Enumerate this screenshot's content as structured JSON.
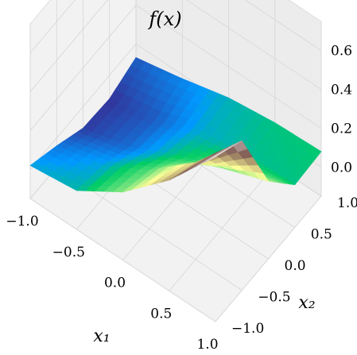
{
  "chart_data": {
    "type": "surface3d",
    "title": "f(x)",
    "xlabel": "x₁",
    "ylabel": "x₂",
    "zlabel": "",
    "xlim": [
      -1.0,
      1.0
    ],
    "ylim": [
      -1.0,
      1.0
    ],
    "zlim": [
      -0.15,
      0.75
    ],
    "x_ticks": [
      "−1.0",
      "−0.5",
      "0.0",
      "0.5",
      "1.0"
    ],
    "y_ticks": [
      "−1.0",
      "−0.5",
      "0.0",
      "0.5",
      "1.0"
    ],
    "z_ticks": [
      "0.0",
      "0.2",
      "0.4",
      "0.6"
    ],
    "grid": true,
    "colormap": "terrain",
    "x": [
      -1.0,
      -0.5,
      0.0,
      0.5,
      1.0
    ],
    "y": [
      -1.0,
      -0.5,
      0.0,
      0.5,
      1.0
    ],
    "z": [
      [
        0.02,
        0.05,
        0.2,
        0.42,
        0.7
      ],
      [
        -0.04,
        0.02,
        0.15,
        0.35,
        0.62
      ],
      [
        -0.11,
        -0.05,
        0.07,
        0.16,
        0.25
      ],
      [
        -0.12,
        -0.07,
        0.03,
        0.06,
        0.07
      ],
      [
        -0.07,
        -0.02,
        0.04,
        0.07,
        0.08
      ]
    ]
  }
}
